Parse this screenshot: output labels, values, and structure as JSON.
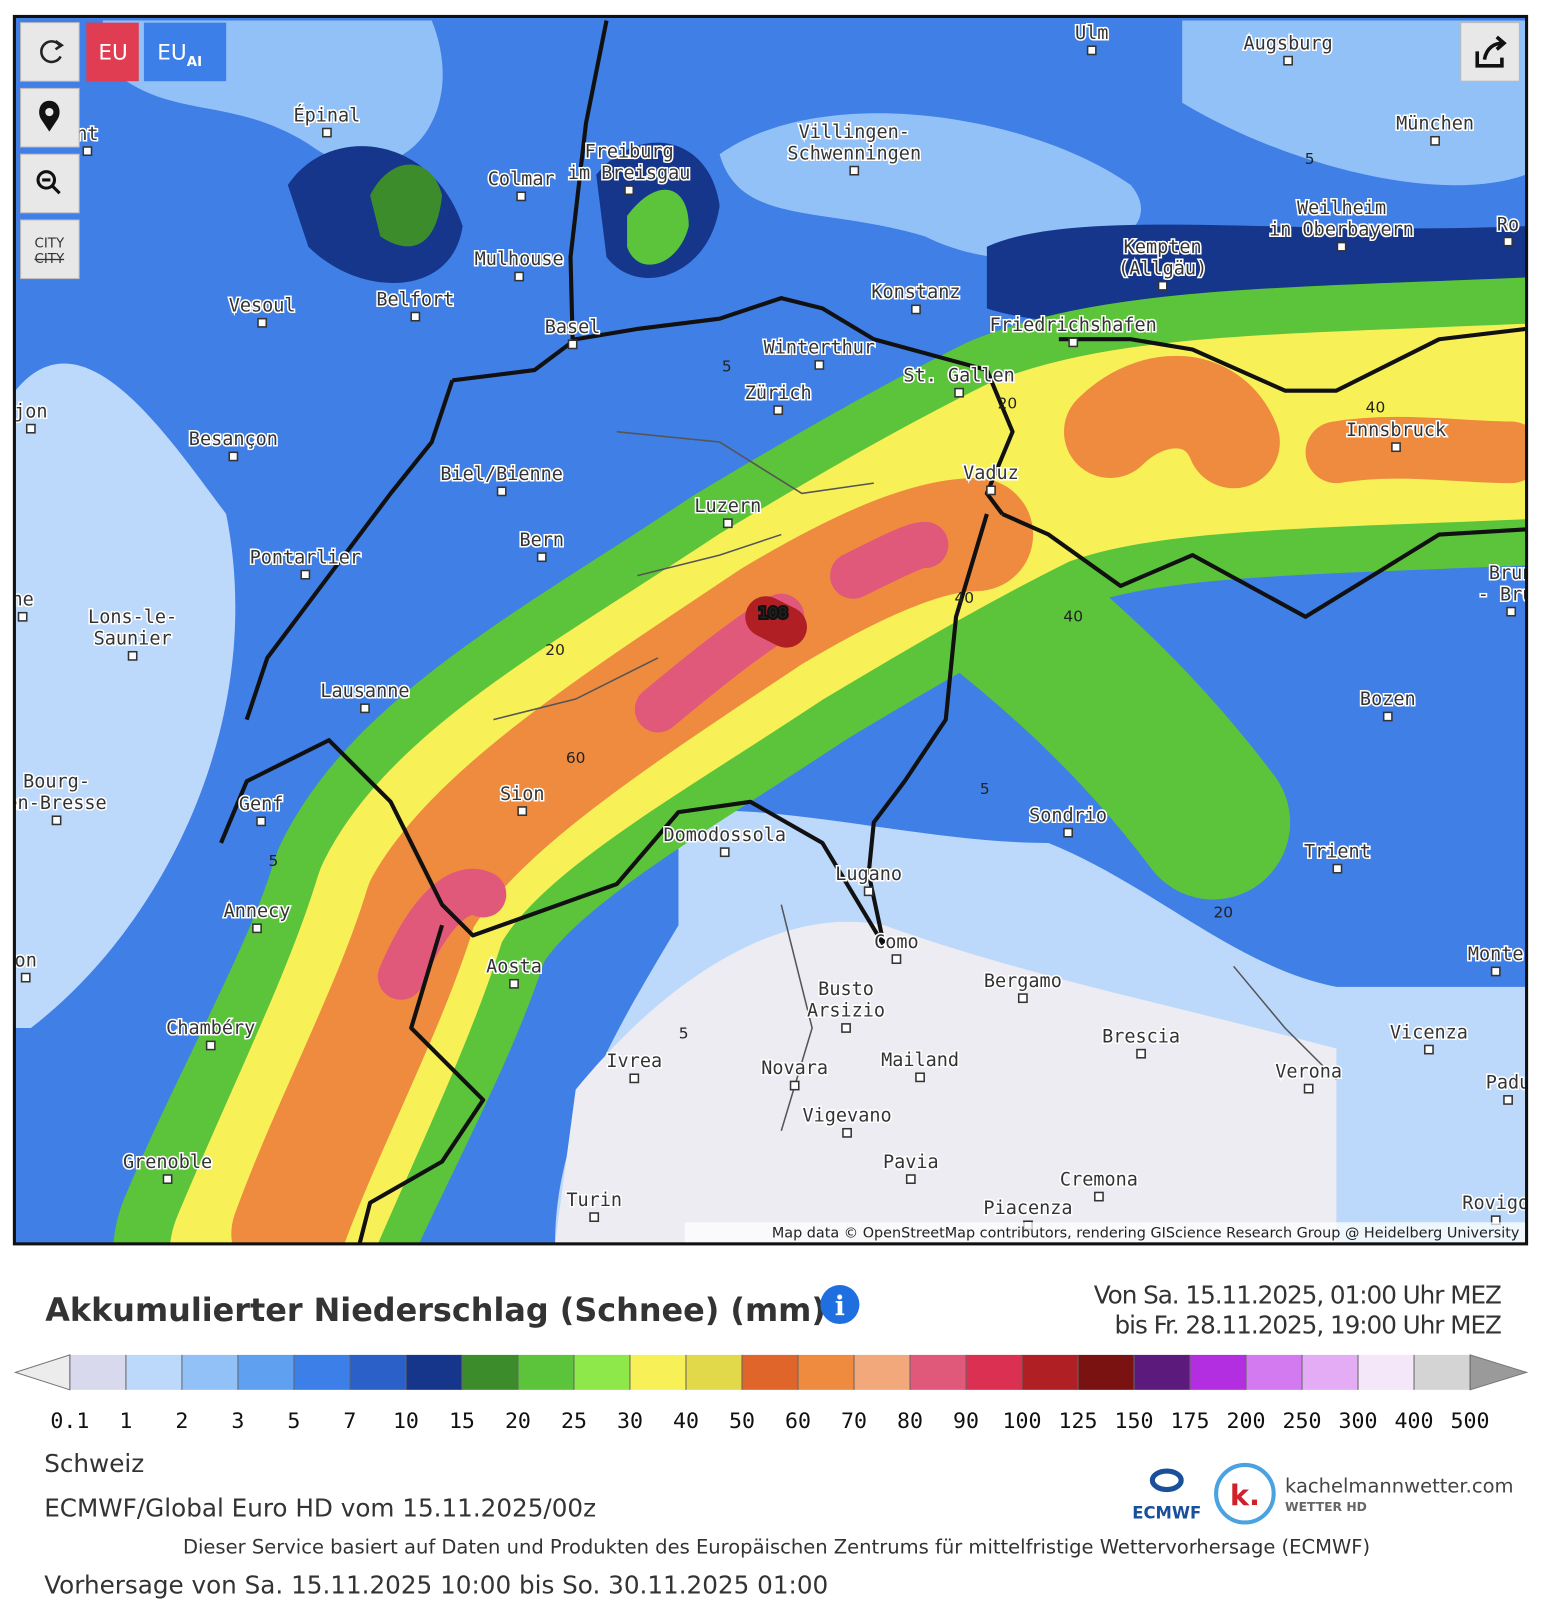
{
  "toolbar": {
    "eu": "EU",
    "eu_ai": {
      "main": "EU",
      "sub": "AI"
    },
    "city": "CITY",
    "city_struck": "CITY"
  },
  "map": {
    "cities": [
      {
        "lines": [
          "Ulm"
        ]
      },
      {
        "lines": [
          "Augsburg"
        ]
      },
      {
        "lines": [
          "Épinal"
        ]
      },
      {
        "lines": [
          "nt"
        ]
      },
      {
        "lines": [
          "München"
        ]
      },
      {
        "lines": [
          "Villingen-",
          "Schwenningen"
        ]
      },
      {
        "lines": [
          "Freiburg",
          "im Breisgau"
        ]
      },
      {
        "lines": [
          "Colmar"
        ]
      },
      {
        "lines": [
          "Weilheim",
          "in Oberbayern"
        ]
      },
      {
        "lines": [
          "Ro"
        ]
      },
      {
        "lines": [
          "Kempten",
          "(Allgäu)"
        ]
      },
      {
        "lines": [
          "Mulhouse"
        ]
      },
      {
        "lines": [
          "Konstanz"
        ]
      },
      {
        "lines": [
          "Belfort"
        ]
      },
      {
        "lines": [
          "Vesoul"
        ]
      },
      {
        "lines": [
          "Basel"
        ]
      },
      {
        "lines": [
          "Friedrichshafen"
        ]
      },
      {
        "lines": [
          "Winterthur"
        ]
      },
      {
        "lines": [
          "St. Gallen"
        ]
      },
      {
        "lines": [
          "Zürich"
        ]
      },
      {
        "lines": [
          "jon"
        ]
      },
      {
        "lines": [
          "Innsbruck"
        ]
      },
      {
        "lines": [
          "Besançon"
        ]
      },
      {
        "lines": [
          "Vaduz"
        ]
      },
      {
        "lines": [
          "Biel/Bienne"
        ]
      },
      {
        "lines": [
          "Luzern"
        ]
      },
      {
        "lines": [
          "Bern"
        ]
      },
      {
        "lines": [
          "Pontarlier"
        ]
      },
      {
        "lines": [
          "Brun",
          "- Brur"
        ]
      },
      {
        "lines": [
          "ne"
        ]
      },
      {
        "lines": [
          "Lons-le-",
          "Saunier"
        ]
      },
      {
        "lines": [
          "Lausanne"
        ]
      },
      {
        "lines": [
          "Bozen"
        ]
      },
      {
        "lines": [
          "Bourg-",
          "en-Bresse"
        ]
      },
      {
        "lines": [
          "Sion"
        ]
      },
      {
        "lines": [
          "Genf"
        ]
      },
      {
        "lines": [
          "Sondrio"
        ]
      },
      {
        "lines": [
          "Domodossola"
        ]
      },
      {
        "lines": [
          "Trient"
        ]
      },
      {
        "lines": [
          "Lugano"
        ]
      },
      {
        "lines": [
          "Annecy"
        ]
      },
      {
        "lines": [
          "Como"
        ]
      },
      {
        "lines": [
          "Monte"
        ]
      },
      {
        "lines": [
          "on"
        ]
      },
      {
        "lines": [
          "Aosta"
        ]
      },
      {
        "lines": [
          "Bergamo"
        ]
      },
      {
        "lines": [
          "Busto",
          "Arsizio"
        ]
      },
      {
        "lines": [
          "Chambéry"
        ]
      },
      {
        "lines": [
          "Vicenza"
        ]
      },
      {
        "lines": [
          "Brescia"
        ]
      },
      {
        "lines": [
          "Ivrea"
        ]
      },
      {
        "lines": [
          "Mailand"
        ]
      },
      {
        "lines": [
          "Novara"
        ]
      },
      {
        "lines": [
          "Verona"
        ]
      },
      {
        "lines": [
          "Padu"
        ]
      },
      {
        "lines": [
          "Vigevano"
        ]
      },
      {
        "lines": [
          "Grenoble"
        ]
      },
      {
        "lines": [
          "Pavia"
        ]
      },
      {
        "lines": [
          "Cremona"
        ]
      },
      {
        "lines": [
          "Turin"
        ]
      },
      {
        "lines": [
          "Piacenza"
        ]
      },
      {
        "lines": [
          "Rovigo"
        ]
      }
    ],
    "contour_labels": [
      108,
      20,
      60,
      40,
      40,
      40,
      20,
      5,
      5,
      5,
      5,
      5,
      20
    ],
    "attribution": "Map data © OpenStreetMap contributors, rendering GIScience Research Group @ Heidelberg University"
  },
  "legend": {
    "title": "Akkumulierter Niederschlag (Schnee) (mm)",
    "info": "i",
    "period": [
      "Von Sa. 15.11.2025, 01:00 Uhr MEZ",
      "bis Fr. 28.11.2025, 19:00 Uhr MEZ"
    ],
    "ticks": [
      0.1,
      1,
      2,
      3,
      5,
      7,
      10,
      15,
      20,
      25,
      30,
      40,
      50,
      60,
      70,
      80,
      90,
      100,
      125,
      150,
      175,
      200,
      250,
      300,
      400,
      500
    ],
    "colors": [
      "#d9d9ee",
      "#bcd9fb",
      "#92c1f8",
      "#5fa0f0",
      "#3d7fe8",
      "#2a60c8",
      "#15368a",
      "#3d8c2c",
      "#5cc43a",
      "#8ee84a",
      "#f7f157",
      "#e1d94a",
      "#e0652a",
      "#ef8b3f",
      "#f2a87a",
      "#e0587a",
      "#db3052",
      "#b01f23",
      "#7a1212",
      "#5c1b7c",
      "#b22ee0",
      "#d37af0",
      "#e3acf5",
      "#f5e7fa",
      "#d4d4d4"
    ],
    "under_color": "#ececec",
    "over_color": "#9a9a9a"
  },
  "footer": {
    "region": "Schweiz",
    "model": "ECMWF/Global Euro HD vom 15.11.2025/00z",
    "credit": "Dieser Service basiert auf Daten und Produkten des Europäischen Zentrums für mittelfristige Wettervorhersage (ECMWF)",
    "forecast": "Vorhersage von Sa. 15.11.2025 10:00 bis So. 30.11.2025 01:00"
  },
  "logos": {
    "ecmwf": "ECMWF",
    "k": "k.",
    "site": "kachelmannwetter.com",
    "sub": "WETTER HD"
  }
}
